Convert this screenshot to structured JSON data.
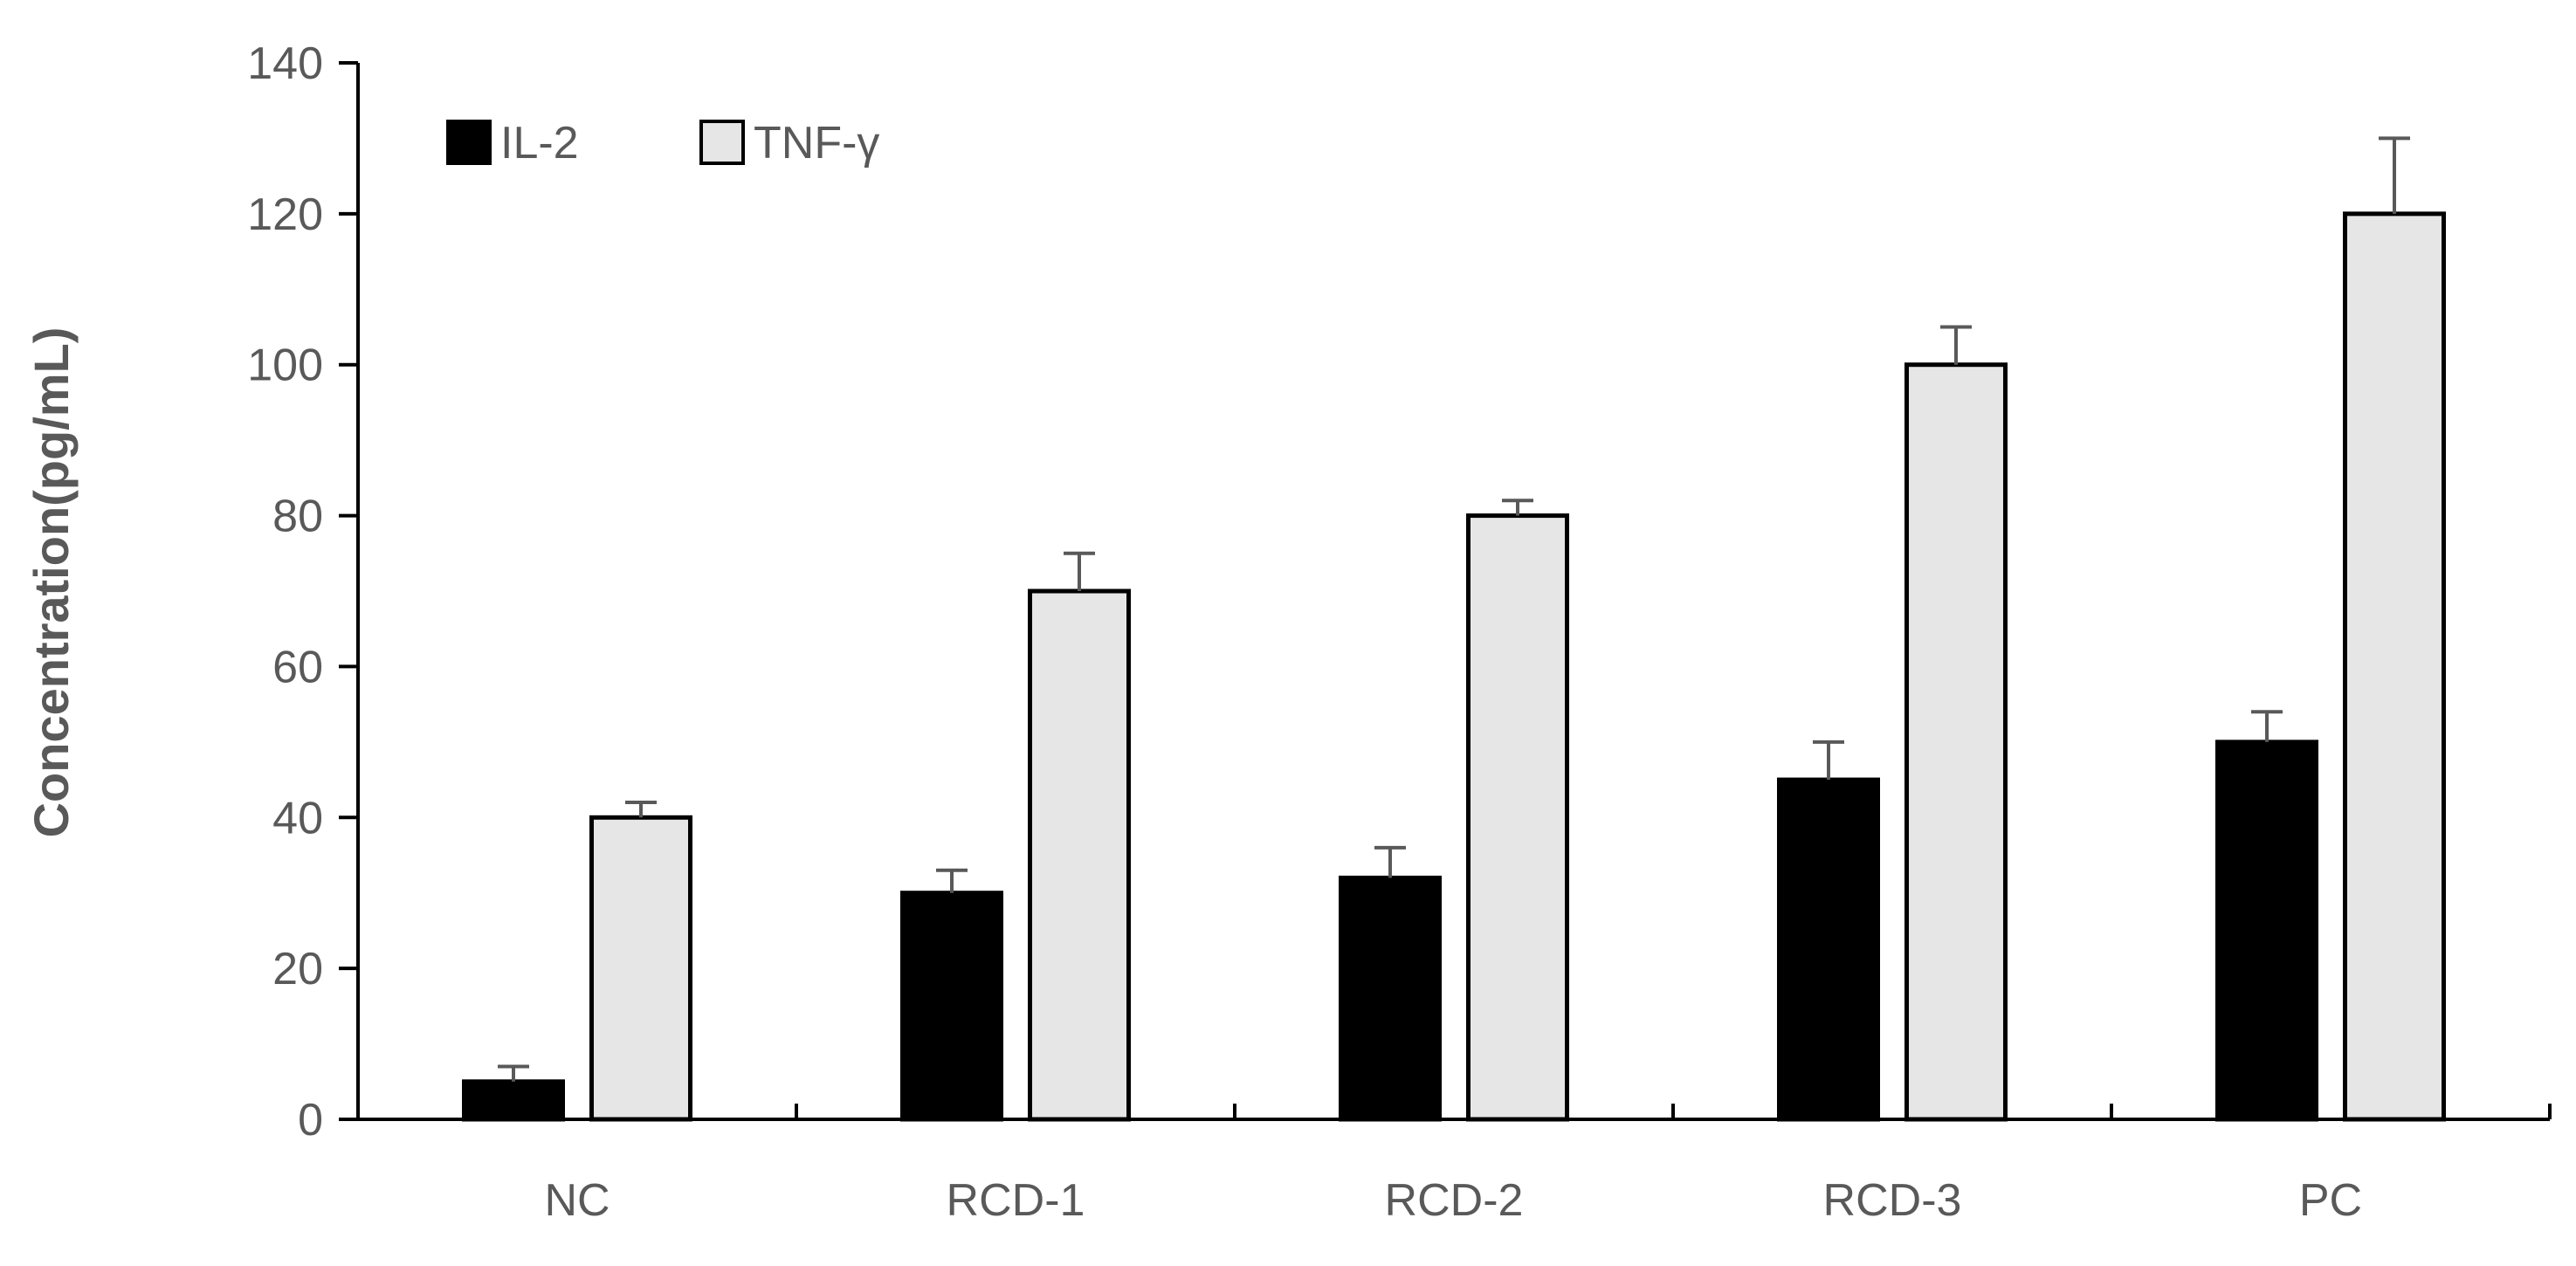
{
  "chart_data": {
    "type": "bar",
    "title": "",
    "xlabel": "",
    "ylabel": "Concentration(pg/mL)",
    "ylim": [
      0,
      140
    ],
    "yticks": [
      0,
      20,
      40,
      60,
      80,
      100,
      120,
      140
    ],
    "grid": false,
    "legend_position": "top-left",
    "categories": [
      "NC",
      "RCD-1",
      "RCD-2",
      "RCD-3",
      "PC"
    ],
    "series": [
      {
        "name": "IL-2",
        "color": "#000000",
        "values": [
          5,
          30,
          32,
          45,
          50
        ],
        "errors": [
          2,
          3,
          4,
          5,
          4
        ]
      },
      {
        "name": "TNF-γ",
        "color": "#e6e6e6",
        "values": [
          40,
          70,
          80,
          100,
          120
        ],
        "errors": [
          2,
          5,
          2,
          5,
          10
        ]
      }
    ]
  },
  "colors": {
    "axis": "#000000",
    "text": "#595959",
    "error_bar": "#595959",
    "bar_border": "#000000"
  }
}
